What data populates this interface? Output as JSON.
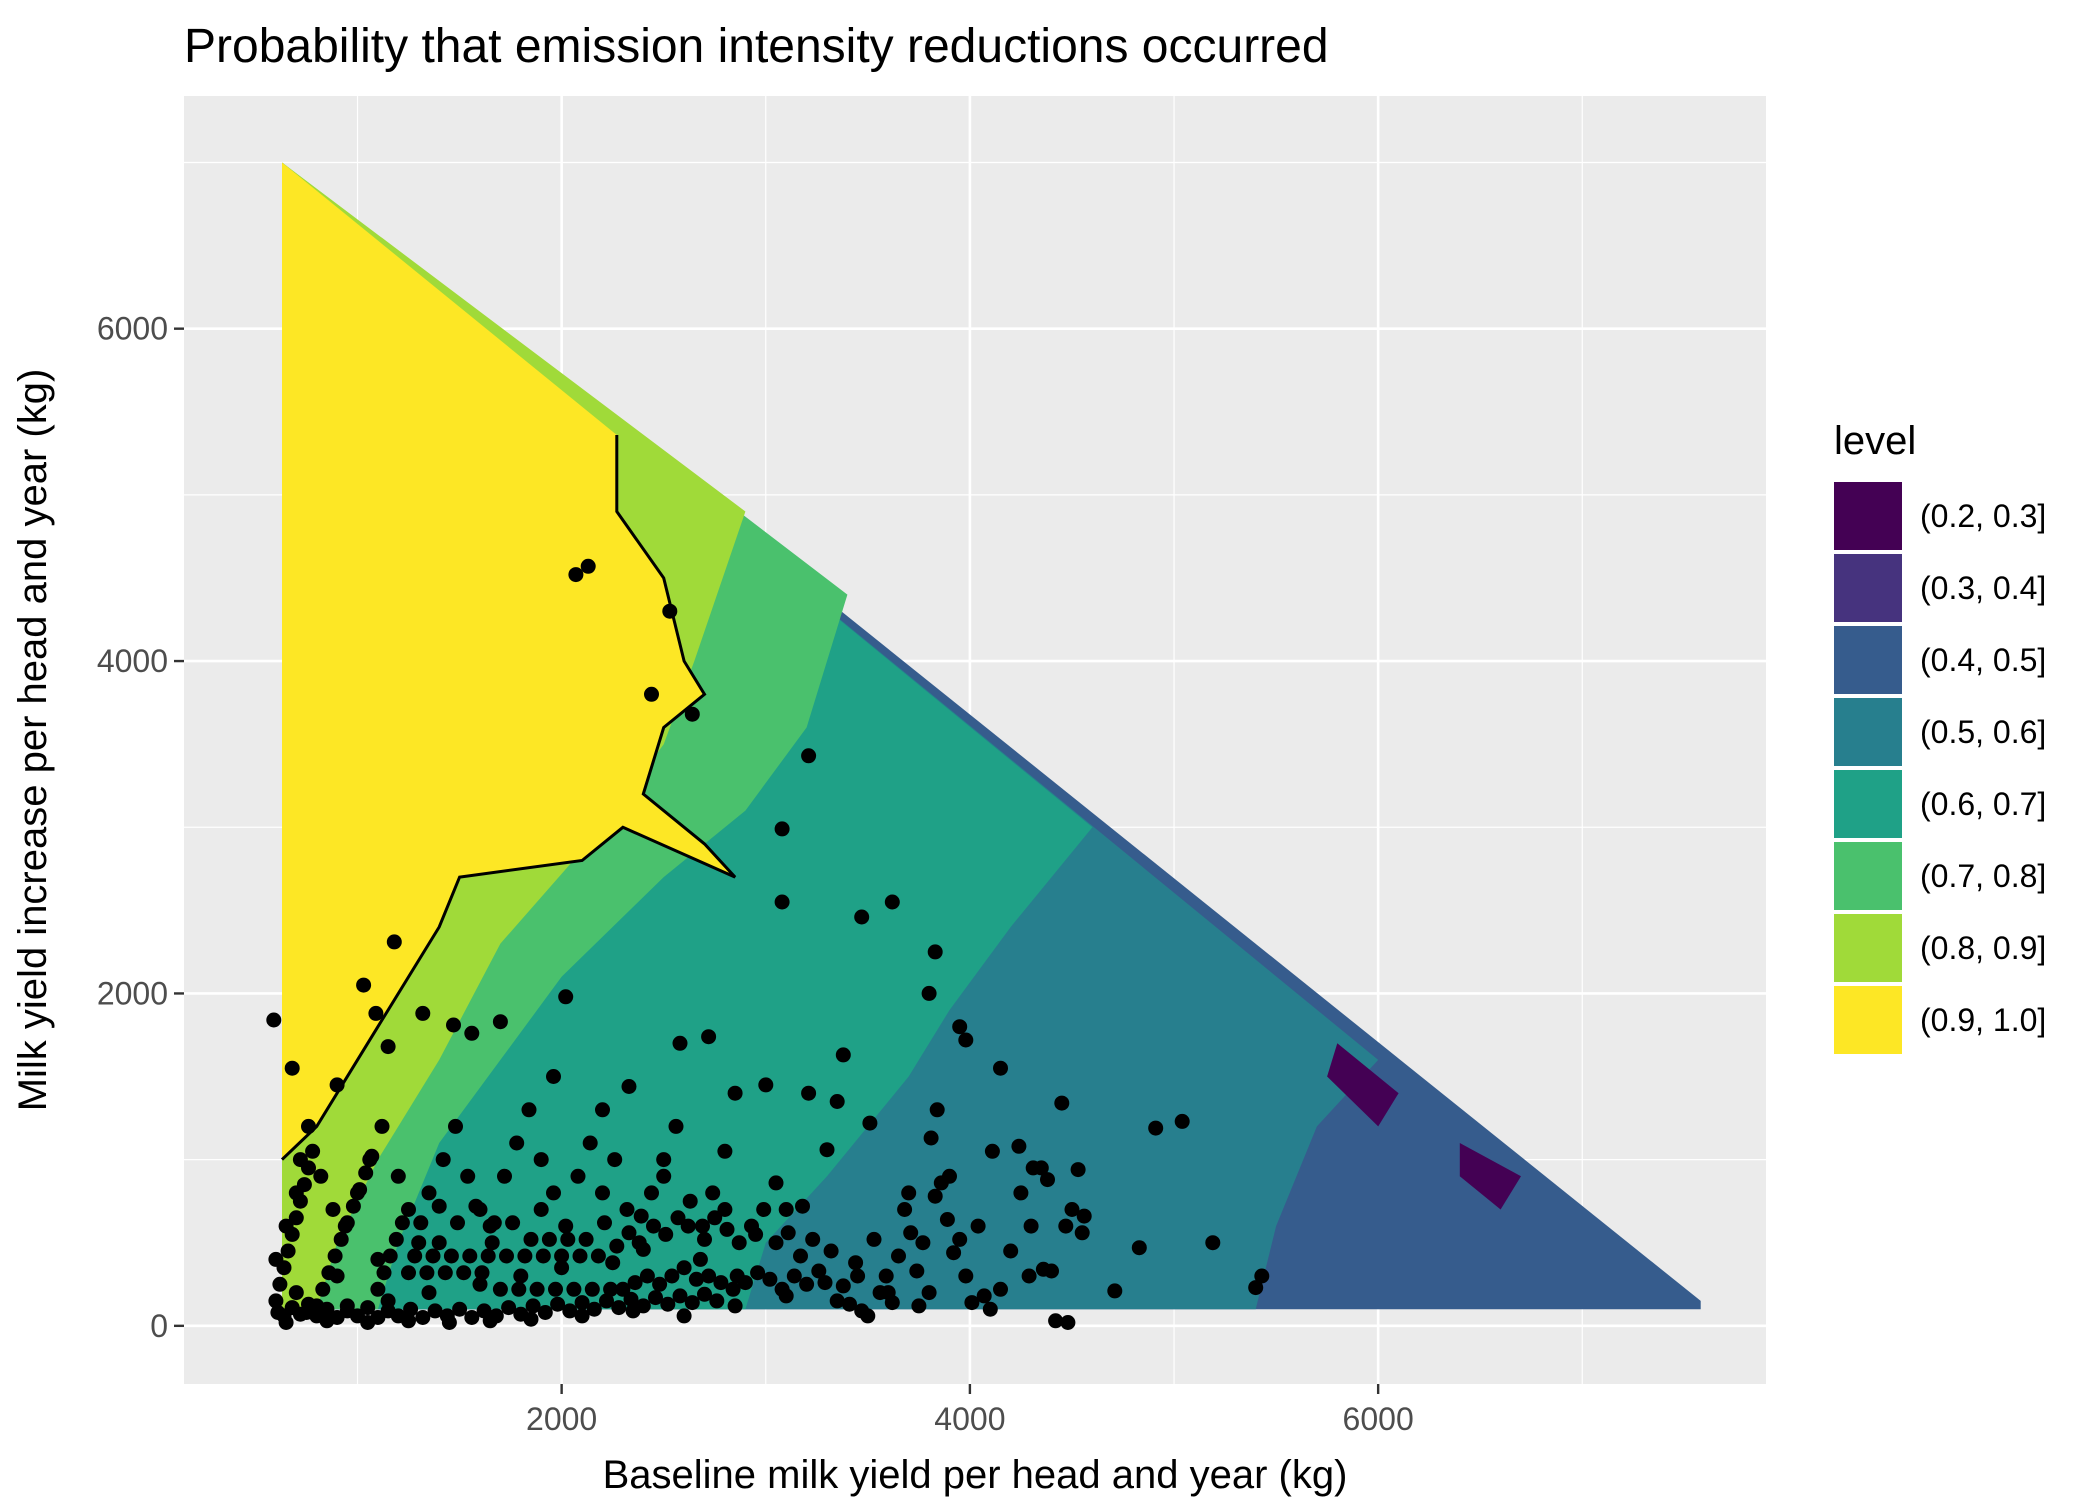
{
  "chart_data": {
    "type": "contour",
    "title": "Probability that emission intensity reductions occurred",
    "xlabel": "Baseline milk yield per head and year (kg)",
    "ylabel": "Milk yield increase per head and year (kg)",
    "xlim": [
      150,
      7900
    ],
    "ylim": [
      -350,
      7400
    ],
    "x_ticks": [
      2000,
      4000,
      6000
    ],
    "y_ticks": [
      0,
      2000,
      4000,
      6000
    ],
    "grid": true,
    "legend": {
      "title": "level",
      "position": "right",
      "entries": [
        {
          "label": "(0.2, 0.3]",
          "color": "#440154"
        },
        {
          "label": "(0.3, 0.4]",
          "color": "#46337E"
        },
        {
          "label": "(0.4, 0.5]",
          "color": "#365C8D"
        },
        {
          "label": "(0.5, 0.6]",
          "color": "#277F8E"
        },
        {
          "label": "(0.6, 0.7]",
          "color": "#1FA187"
        },
        {
          "label": "(0.7, 0.8]",
          "color": "#4AC16D"
        },
        {
          "label": "(0.8, 0.9]",
          "color": "#A0DA39"
        },
        {
          "label": "(0.9, 1.0]",
          "color": "#FDE725"
        }
      ]
    },
    "regions": [
      {
        "level": "(0.4, 0.5]",
        "polygon": [
          [
            630,
            100
          ],
          [
            630,
            7000
          ],
          [
            7580,
            150
          ],
          [
            7580,
            100
          ]
        ]
      },
      {
        "level": "(0.5, 0.6]",
        "polygon": [
          [
            630,
            100
          ],
          [
            630,
            7000
          ],
          [
            6000,
            1600
          ],
          [
            5700,
            1200
          ],
          [
            5500,
            600
          ],
          [
            5400,
            100
          ]
        ]
      },
      {
        "level": "(0.6, 0.7]",
        "polygon": [
          [
            630,
            100
          ],
          [
            630,
            7000
          ],
          [
            4600,
            3000
          ],
          [
            4200,
            2400
          ],
          [
            3900,
            1900
          ],
          [
            3700,
            1500
          ],
          [
            3300,
            900
          ],
          [
            3000,
            500
          ],
          [
            2900,
            100
          ]
        ]
      },
      {
        "level": "(0.7, 0.8]",
        "polygon": [
          [
            630,
            100
          ],
          [
            630,
            7000
          ],
          [
            3400,
            4400
          ],
          [
            3200,
            3600
          ],
          [
            2900,
            3100
          ],
          [
            2500,
            2700
          ],
          [
            2000,
            2100
          ],
          [
            1700,
            1600
          ],
          [
            1400,
            1100
          ],
          [
            1200,
            500
          ],
          [
            1100,
            100
          ]
        ]
      },
      {
        "level": "(0.8, 0.9]",
        "polygon": [
          [
            630,
            100
          ],
          [
            630,
            7000
          ],
          [
            2900,
            4900
          ],
          [
            2650,
            4000
          ],
          [
            2500,
            3500
          ],
          [
            2200,
            3000
          ],
          [
            1700,
            2300
          ],
          [
            1400,
            1600
          ],
          [
            1100,
            1000
          ],
          [
            900,
            500
          ],
          [
            800,
            100
          ]
        ]
      },
      {
        "level": "(0.9, 1.0]",
        "polygon": [
          [
            630,
            7000
          ],
          [
            2270,
            5360
          ],
          [
            2270,
            4900
          ],
          [
            2500,
            4500
          ],
          [
            2600,
            4000
          ],
          [
            2700,
            3800
          ],
          [
            2500,
            3600
          ],
          [
            2400,
            3200
          ],
          [
            2700,
            2900
          ],
          [
            2850,
            2700
          ],
          [
            2300,
            3000
          ],
          [
            2100,
            2800
          ],
          [
            1500,
            2700
          ],
          [
            1400,
            2400
          ],
          [
            1100,
            1800
          ],
          [
            800,
            1200
          ],
          [
            630,
            1000
          ]
        ]
      },
      {
        "level": "(0.2, 0.3]",
        "polygon": [
          [
            5800,
            1700
          ],
          [
            6100,
            1400
          ],
          [
            6000,
            1200
          ],
          [
            5750,
            1500
          ]
        ]
      },
      {
        "level": "(0.2, 0.3]",
        "polygon": [
          [
            6400,
            1100
          ],
          [
            6700,
            900
          ],
          [
            6600,
            700
          ],
          [
            6400,
            900
          ]
        ]
      }
    ],
    "boundary_line": [
      [
        630,
        1000
      ],
      [
        800,
        1200
      ],
      [
        1100,
        1800
      ],
      [
        1400,
        2400
      ],
      [
        1500,
        2700
      ],
      [
        2100,
        2800
      ],
      [
        2300,
        3000
      ],
      [
        2850,
        2700
      ],
      [
        2700,
        2900
      ],
      [
        2400,
        3200
      ],
      [
        2500,
        3600
      ],
      [
        2700,
        3800
      ],
      [
        2600,
        4000
      ],
      [
        2500,
        4500
      ],
      [
        2270,
        4900
      ],
      [
        2270,
        5360
      ]
    ],
    "points": [
      [
        2130,
        4570
      ],
      [
        2070,
        4520
      ],
      [
        2530,
        4300
      ],
      [
        2440,
        3800
      ],
      [
        2640,
        3680
      ],
      [
        3210,
        3430
      ],
      [
        3080,
        2990
      ],
      [
        3080,
        2550
      ],
      [
        3470,
        2460
      ],
      [
        3620,
        2550
      ],
      [
        3830,
        2250
      ],
      [
        3800,
        2000
      ],
      [
        3950,
        1800
      ],
      [
        3980,
        1720
      ],
      [
        4150,
        1550
      ],
      [
        3380,
        1630
      ],
      [
        3350,
        1350
      ],
      [
        3510,
        1220
      ],
      [
        3810,
        1130
      ],
      [
        3840,
        1300
      ],
      [
        4110,
        1050
      ],
      [
        4240,
        1080
      ],
      [
        4310,
        950
      ],
      [
        4530,
        940
      ],
      [
        4450,
        1340
      ],
      [
        4910,
        1190
      ],
      [
        5040,
        1230
      ],
      [
        5190,
        500
      ],
      [
        4830,
        470
      ],
      [
        5400,
        230
      ],
      [
        5430,
        300
      ],
      [
        4710,
        210
      ],
      [
        4560,
        660
      ],
      [
        4470,
        600
      ],
      [
        4360,
        340
      ],
      [
        4290,
        300
      ],
      [
        4420,
        30
      ],
      [
        4480,
        20
      ],
      [
        590,
        1840
      ],
      [
        680,
        1550
      ],
      [
        900,
        1450
      ],
      [
        1030,
        2050
      ],
      [
        1090,
        1880
      ],
      [
        1150,
        1680
      ],
      [
        1180,
        2310
      ],
      [
        1320,
        1880
      ],
      [
        1470,
        1810
      ],
      [
        1560,
        1760
      ],
      [
        1700,
        1830
      ],
      [
        1960,
        1500
      ],
      [
        2020,
        1980
      ],
      [
        2330,
        1440
      ],
      [
        2580,
        1700
      ],
      [
        2720,
        1740
      ],
      [
        2850,
        1400
      ],
      [
        3000,
        1450
      ],
      [
        3210,
        1400
      ],
      [
        3300,
        1060
      ],
      [
        3700,
        800
      ],
      [
        3900,
        900
      ],
      [
        2800,
        1050
      ],
      [
        2500,
        900
      ],
      [
        2200,
        800
      ],
      [
        1900,
        700
      ],
      [
        1650,
        600
      ],
      [
        1400,
        500
      ],
      [
        1100,
        400
      ],
      [
        900,
        300
      ],
      [
        700,
        200
      ],
      [
        3050,
        860
      ],
      [
        3100,
        700
      ],
      [
        3180,
        720
      ],
      [
        2950,
        550
      ],
      [
        2700,
        520
      ],
      [
        2400,
        460
      ],
      [
        2250,
        380
      ],
      [
        2000,
        350
      ],
      [
        1800,
        300
      ],
      [
        1600,
        250
      ],
      [
        1350,
        200
      ],
      [
        1150,
        150
      ],
      [
        950,
        120
      ],
      [
        750,
        80
      ],
      [
        3450,
        300
      ],
      [
        3600,
        200
      ],
      [
        3750,
        120
      ],
      [
        3100,
        180
      ],
      [
        2850,
        120
      ],
      [
        2600,
        60
      ],
      [
        2350,
        90
      ],
      [
        2100,
        60
      ],
      [
        1850,
        40
      ],
      [
        1650,
        30
      ],
      [
        1450,
        20
      ],
      [
        1250,
        30
      ],
      [
        1050,
        20
      ],
      [
        850,
        30
      ],
      [
        650,
        20
      ],
      [
        600,
        400
      ],
      [
        650,
        600
      ],
      [
        700,
        800
      ],
      [
        720,
        1000
      ],
      [
        760,
        1200
      ],
      [
        820,
        900
      ],
      [
        880,
        700
      ],
      [
        940,
        600
      ],
      [
        1000,
        800
      ],
      [
        1060,
        1000
      ],
      [
        1120,
        1200
      ],
      [
        1200,
        900
      ],
      [
        1250,
        700
      ],
      [
        1300,
        500
      ],
      [
        1350,
        800
      ],
      [
        1420,
        1000
      ],
      [
        1480,
        1200
      ],
      [
        1540,
        900
      ],
      [
        1600,
        700
      ],
      [
        1660,
        500
      ],
      [
        1720,
        900
      ],
      [
        1780,
        1100
      ],
      [
        1840,
        1300
      ],
      [
        1900,
        1000
      ],
      [
        1960,
        800
      ],
      [
        2020,
        600
      ],
      [
        2080,
        900
      ],
      [
        2140,
        1100
      ],
      [
        2200,
        1300
      ],
      [
        2260,
        1000
      ],
      [
        2320,
        700
      ],
      [
        2380,
        500
      ],
      [
        2440,
        800
      ],
      [
        2500,
        1000
      ],
      [
        2560,
        1200
      ],
      [
        2620,
        600
      ],
      [
        2680,
        400
      ],
      [
        2740,
        800
      ],
      [
        2800,
        700
      ],
      [
        2860,
        300
      ],
      [
        600,
        150
      ],
      [
        620,
        250
      ],
      [
        640,
        350
      ],
      [
        660,
        450
      ],
      [
        680,
        550
      ],
      [
        700,
        650
      ],
      [
        720,
        750
      ],
      [
        740,
        850
      ],
      [
        760,
        950
      ],
      [
        780,
        1050
      ],
      [
        800,
        120
      ],
      [
        830,
        220
      ],
      [
        860,
        320
      ],
      [
        890,
        420
      ],
      [
        920,
        520
      ],
      [
        950,
        620
      ],
      [
        980,
        720
      ],
      [
        1010,
        820
      ],
      [
        1040,
        920
      ],
      [
        1070,
        1020
      ],
      [
        1100,
        220
      ],
      [
        1130,
        320
      ],
      [
        1160,
        420
      ],
      [
        1190,
        520
      ],
      [
        1220,
        620
      ],
      [
        1250,
        320
      ],
      [
        1280,
        420
      ],
      [
        1310,
        620
      ],
      [
        1340,
        320
      ],
      [
        1370,
        420
      ],
      [
        1400,
        720
      ],
      [
        1430,
        320
      ],
      [
        1460,
        420
      ],
      [
        1490,
        620
      ],
      [
        1520,
        320
      ],
      [
        1550,
        420
      ],
      [
        1580,
        720
      ],
      [
        1610,
        320
      ],
      [
        1640,
        420
      ],
      [
        1670,
        620
      ],
      [
        1700,
        220
      ],
      [
        1730,
        420
      ],
      [
        1760,
        620
      ],
      [
        1790,
        220
      ],
      [
        1820,
        420
      ],
      [
        1850,
        520
      ],
      [
        1880,
        220
      ],
      [
        1910,
        420
      ],
      [
        1940,
        520
      ],
      [
        1970,
        220
      ],
      [
        2000,
        420
      ],
      [
        2030,
        520
      ],
      [
        2060,
        220
      ],
      [
        2090,
        420
      ],
      [
        2120,
        520
      ],
      [
        2150,
        220
      ],
      [
        2180,
        420
      ],
      [
        2210,
        620
      ],
      [
        2240,
        220
      ],
      [
        2270,
        480
      ],
      [
        2300,
        220
      ],
      [
        2330,
        560
      ],
      [
        2360,
        260
      ],
      [
        2390,
        660
      ],
      [
        2420,
        300
      ],
      [
        2450,
        600
      ],
      [
        2480,
        250
      ],
      [
        2510,
        550
      ],
      [
        2540,
        300
      ],
      [
        2570,
        650
      ],
      [
        2600,
        350
      ],
      [
        2630,
        750
      ],
      [
        2660,
        280
      ],
      [
        2690,
        600
      ],
      [
        2720,
        300
      ],
      [
        2750,
        650
      ],
      [
        2780,
        260
      ],
      [
        2810,
        580
      ],
      [
        2840,
        220
      ],
      [
        2870,
        500
      ],
      [
        2900,
        260
      ],
      [
        2930,
        600
      ],
      [
        2960,
        320
      ],
      [
        2990,
        700
      ],
      [
        3020,
        280
      ],
      [
        3050,
        500
      ],
      [
        3080,
        220
      ],
      [
        3110,
        560
      ],
      [
        3140,
        300
      ],
      [
        3170,
        420
      ],
      [
        3200,
        250
      ],
      [
        3230,
        520
      ],
      [
        3260,
        330
      ],
      [
        3290,
        260
      ],
      [
        3320,
        450
      ],
      [
        3350,
        150
      ],
      [
        3380,
        240
      ],
      [
        3410,
        130
      ],
      [
        3440,
        380
      ],
      [
        3470,
        90
      ],
      [
        3500,
        60
      ],
      [
        3530,
        520
      ],
      [
        3560,
        200
      ],
      [
        3590,
        300
      ],
      [
        3620,
        140
      ],
      [
        3650,
        420
      ],
      [
        3680,
        700
      ],
      [
        3710,
        560
      ],
      [
        3740,
        330
      ],
      [
        3770,
        500
      ],
      [
        3800,
        200
      ],
      [
        3830,
        780
      ],
      [
        3860,
        860
      ],
      [
        3890,
        640
      ],
      [
        3920,
        440
      ],
      [
        3950,
        520
      ],
      [
        3980,
        300
      ],
      [
        4010,
        140
      ],
      [
        4040,
        600
      ],
      [
        4070,
        180
      ],
      [
        4100,
        100
      ],
      [
        4150,
        220
      ],
      [
        4200,
        450
      ],
      [
        4250,
        800
      ],
      [
        4300,
        600
      ],
      [
        4350,
        950
      ],
      [
        4380,
        880
      ],
      [
        4400,
        330
      ],
      [
        4500,
        700
      ],
      [
        4550,
        560
      ],
      [
        610,
        80
      ],
      [
        640,
        60
      ],
      [
        680,
        110
      ],
      [
        720,
        70
      ],
      [
        760,
        130
      ],
      [
        800,
        60
      ],
      [
        850,
        100
      ],
      [
        900,
        50
      ],
      [
        950,
        90
      ],
      [
        1000,
        60
      ],
      [
        1050,
        110
      ],
      [
        1100,
        50
      ],
      [
        1150,
        90
      ],
      [
        1200,
        60
      ],
      [
        1260,
        100
      ],
      [
        1320,
        50
      ],
      [
        1380,
        90
      ],
      [
        1440,
        60
      ],
      [
        1500,
        100
      ],
      [
        1560,
        50
      ],
      [
        1620,
        90
      ],
      [
        1680,
        60
      ],
      [
        1740,
        110
      ],
      [
        1800,
        70
      ],
      [
        1860,
        120
      ],
      [
        1920,
        80
      ],
      [
        1980,
        130
      ],
      [
        2040,
        90
      ],
      [
        2100,
        140
      ],
      [
        2160,
        100
      ],
      [
        2220,
        150
      ],
      [
        2280,
        110
      ],
      [
        2340,
        160
      ],
      [
        2400,
        120
      ],
      [
        2460,
        170
      ],
      [
        2520,
        130
      ],
      [
        2580,
        180
      ],
      [
        2640,
        140
      ],
      [
        2700,
        190
      ],
      [
        2760,
        150
      ]
    ]
  }
}
